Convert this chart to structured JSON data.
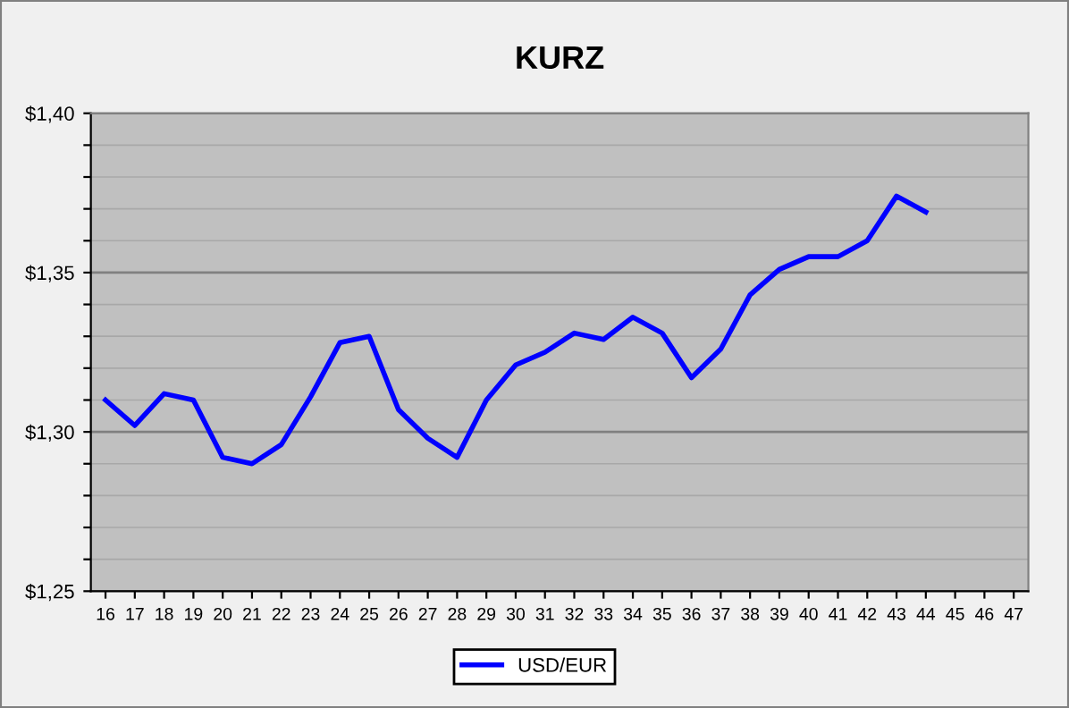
{
  "chart_data": {
    "type": "line",
    "title": "KURZ",
    "categories": [
      "16",
      "17",
      "18",
      "19",
      "20",
      "21",
      "22",
      "23",
      "24",
      "25",
      "26",
      "27",
      "28",
      "29",
      "30",
      "31",
      "32",
      "33",
      "34",
      "35",
      "36",
      "37",
      "38",
      "39",
      "40",
      "41",
      "42",
      "43",
      "44",
      "45",
      "46",
      "47"
    ],
    "series": [
      {
        "name": "USD/EUR",
        "color": "#0000ff",
        "values": [
          1.31,
          1.302,
          1.312,
          1.31,
          1.292,
          1.29,
          1.296,
          1.311,
          1.328,
          1.33,
          1.307,
          1.298,
          1.292,
          1.31,
          1.321,
          1.325,
          1.331,
          1.329,
          1.336,
          1.331,
          1.317,
          1.326,
          1.343,
          1.351,
          1.355,
          1.355,
          1.36,
          1.374,
          1.369,
          null,
          null,
          null
        ]
      }
    ],
    "ylim": [
      1.25,
      1.4
    ],
    "yticks": [
      {
        "value": 1.25,
        "label": "$1,25"
      },
      {
        "value": 1.26,
        "label": null
      },
      {
        "value": 1.27,
        "label": null
      },
      {
        "value": 1.28,
        "label": null
      },
      {
        "value": 1.29,
        "label": null
      },
      {
        "value": 1.3,
        "label": "$1,30"
      },
      {
        "value": 1.31,
        "label": null
      },
      {
        "value": 1.32,
        "label": null
      },
      {
        "value": 1.33,
        "label": null
      },
      {
        "value": 1.34,
        "label": null
      },
      {
        "value": 1.35,
        "label": "$1,35"
      },
      {
        "value": 1.36,
        "label": null
      },
      {
        "value": 1.37,
        "label": null
      },
      {
        "value": 1.38,
        "label": null
      },
      {
        "value": 1.39,
        "label": null
      },
      {
        "value": 1.4,
        "label": "$1,40"
      }
    ],
    "grid": "y",
    "legend": "bottom",
    "marker": "none",
    "line_style": "solid"
  }
}
